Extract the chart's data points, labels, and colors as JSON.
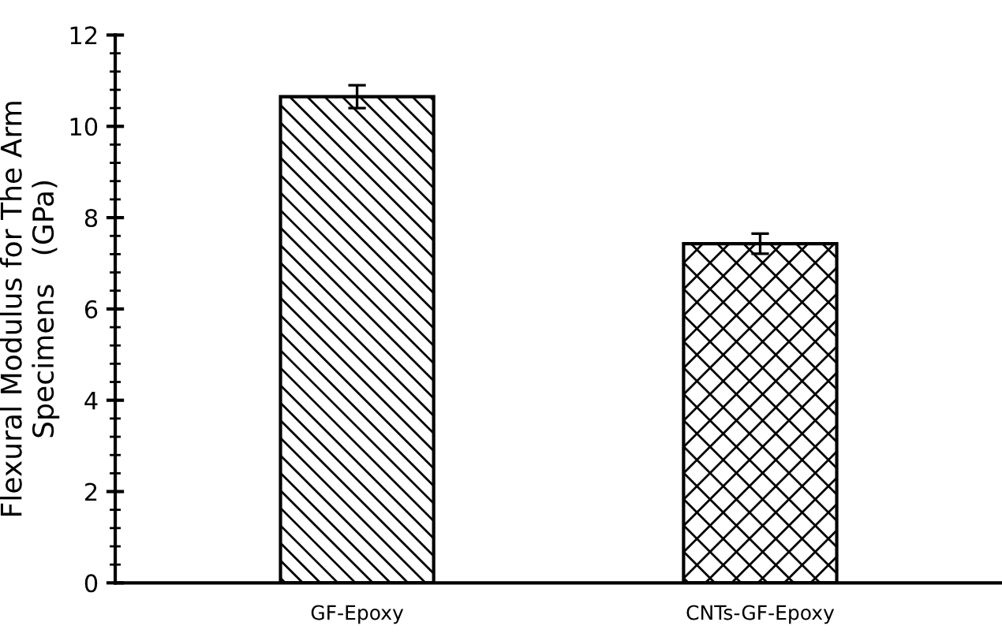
{
  "chart_data": {
    "type": "bar",
    "ylabel": "Flexural Modulus for The Arm\nSpecimens   (GPa)",
    "categories": [
      "GF-Epoxy",
      "CNTs-GF-Epoxy"
    ],
    "values": [
      10.65,
      7.43
    ],
    "errors": [
      0.25,
      0.22
    ],
    "colors": [
      "#ffffff",
      "#ffffff"
    ],
    "ylim": [
      0,
      12
    ],
    "yticks": [
      0,
      2,
      4,
      6,
      8,
      10,
      12
    ],
    "grid": false,
    "legend": false
  }
}
